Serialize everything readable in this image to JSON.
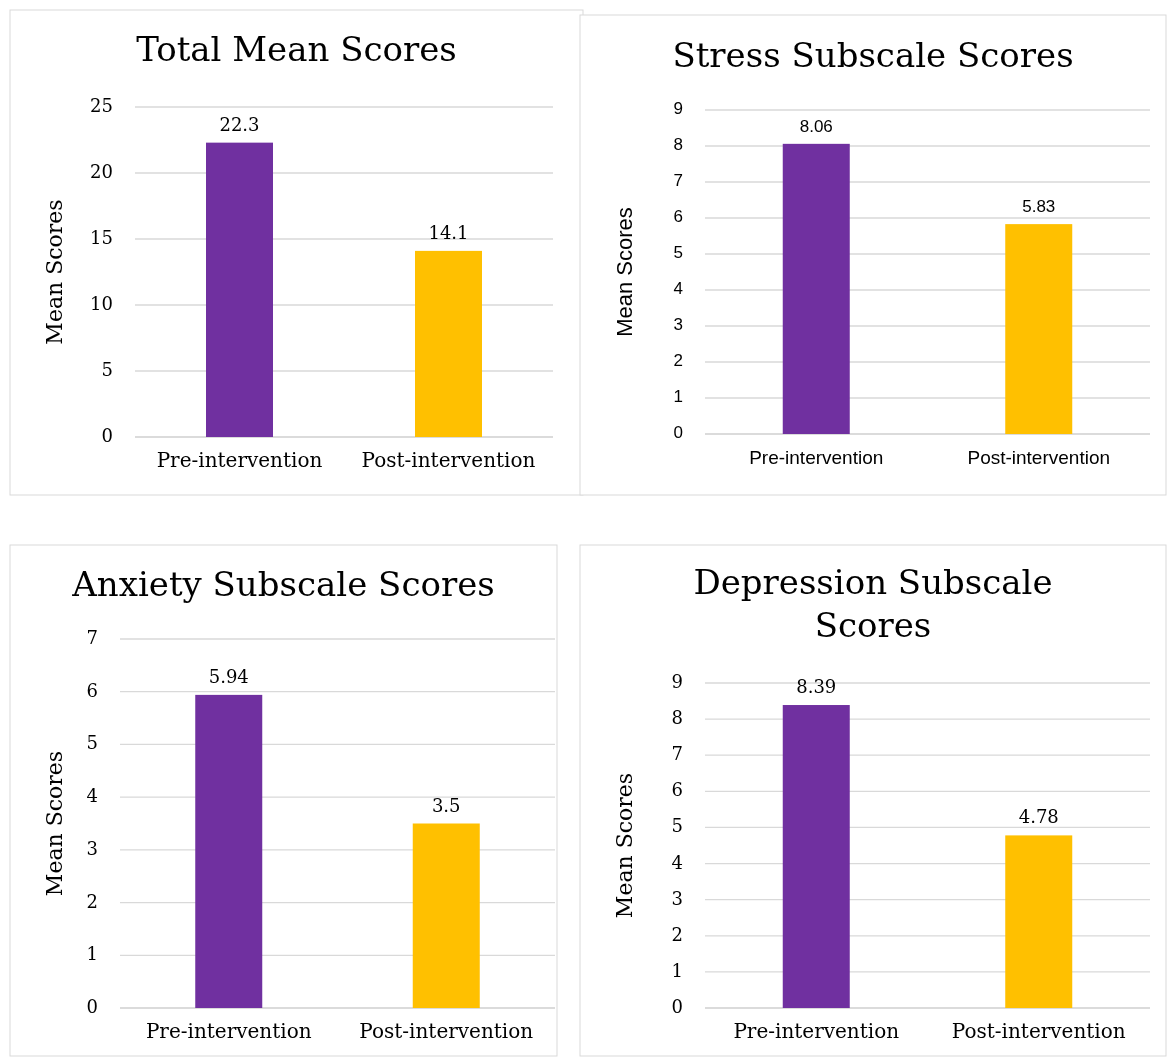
{
  "chart_data": [
    {
      "type": "bar",
      "title": "Total Mean Scores",
      "ylabel": "Mean Scores",
      "categories": [
        "Pre-intervention",
        "Post-intervention"
      ],
      "values": [
        22.3,
        14.1
      ],
      "colors": [
        "#7030a0",
        "#ffc000"
      ],
      "ylim": [
        0,
        25
      ],
      "yticks": [
        0,
        5,
        10,
        15,
        20,
        25
      ],
      "grid": "y",
      "data_labels": true
    },
    {
      "type": "bar",
      "title": "Stress Subscale Scores",
      "ylabel": "Mean Scores",
      "categories": [
        "Pre-intervention",
        "Post-intervention"
      ],
      "values": [
        8.06,
        5.83
      ],
      "colors": [
        "#7030a0",
        "#ffc000"
      ],
      "ylim": [
        0,
        9
      ],
      "yticks": [
        0,
        1,
        2,
        3,
        4,
        5,
        6,
        7,
        8,
        9
      ],
      "grid": "y",
      "data_labels": true
    },
    {
      "type": "bar",
      "title": "Anxiety Subscale Scores",
      "ylabel": "Mean Scores",
      "categories": [
        "Pre-intervention",
        "Post-intervention"
      ],
      "values": [
        5.94,
        3.5
      ],
      "colors": [
        "#7030a0",
        "#ffc000"
      ],
      "ylim": [
        0,
        7
      ],
      "yticks": [
        0,
        1,
        2,
        3,
        4,
        5,
        6,
        7
      ],
      "grid": "y",
      "data_labels": true
    },
    {
      "type": "bar",
      "title": "Depression Subscale Scores",
      "ylabel": "Mean Scores",
      "categories": [
        "Pre-intervention",
        "Post-intervention"
      ],
      "values": [
        8.39,
        4.78
      ],
      "colors": [
        "#7030a0",
        "#ffc000"
      ],
      "ylim": [
        0,
        9
      ],
      "yticks": [
        0,
        1,
        2,
        3,
        4,
        5,
        6,
        7,
        8,
        9
      ],
      "grid": "y",
      "data_labels": true
    }
  ]
}
